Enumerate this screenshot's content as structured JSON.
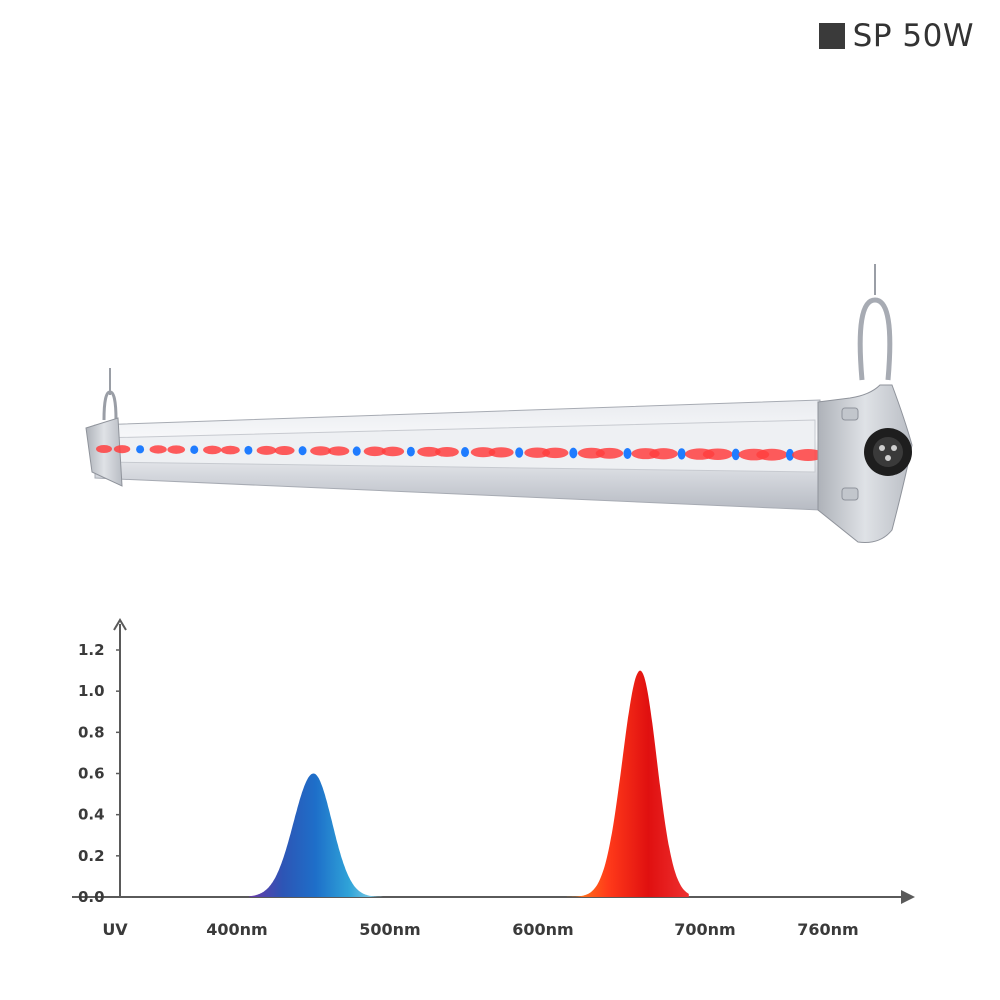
{
  "badge": {
    "label": "SP 50W",
    "color": "#3a3a3a"
  },
  "product": {
    "led_red": "#ff4040",
    "led_blue": "#1f7cff",
    "housing": "#c9ccd2"
  },
  "chart_data": {
    "type": "area",
    "x_tick_labels": [
      "UV",
      "400nm",
      "500nm",
      "600nm",
      "700nm",
      "760nm"
    ],
    "x_ticks_nm": [
      350,
      400,
      500,
      600,
      700,
      760
    ],
    "y_ticks": [
      "0.0",
      "0.2",
      "0.4",
      "0.6",
      "0.8",
      "1.0",
      "1.2"
    ],
    "y_tick_values": [
      0,
      0.2,
      0.4,
      0.6,
      0.8,
      1.0,
      1.2
    ],
    "ylim": [
      0,
      1.2
    ],
    "series": [
      {
        "peak_nm": 450,
        "peak_value": 0.6,
        "width_nm": 13,
        "range_nm": [
          408,
          495
        ],
        "colors": [
          "#6a3aa8",
          "#2d55b5",
          "#1e6fc9",
          "#2fa3d8",
          "#9ad8ea"
        ]
      },
      {
        "peak_nm": 660,
        "peak_value": 1.1,
        "width_nm": 11,
        "range_nm": [
          590,
          690
        ],
        "colors": [
          "#ffd02a",
          "#ff8a1a",
          "#ff3a1a",
          "#e01010",
          "#ee3030"
        ]
      }
    ]
  }
}
